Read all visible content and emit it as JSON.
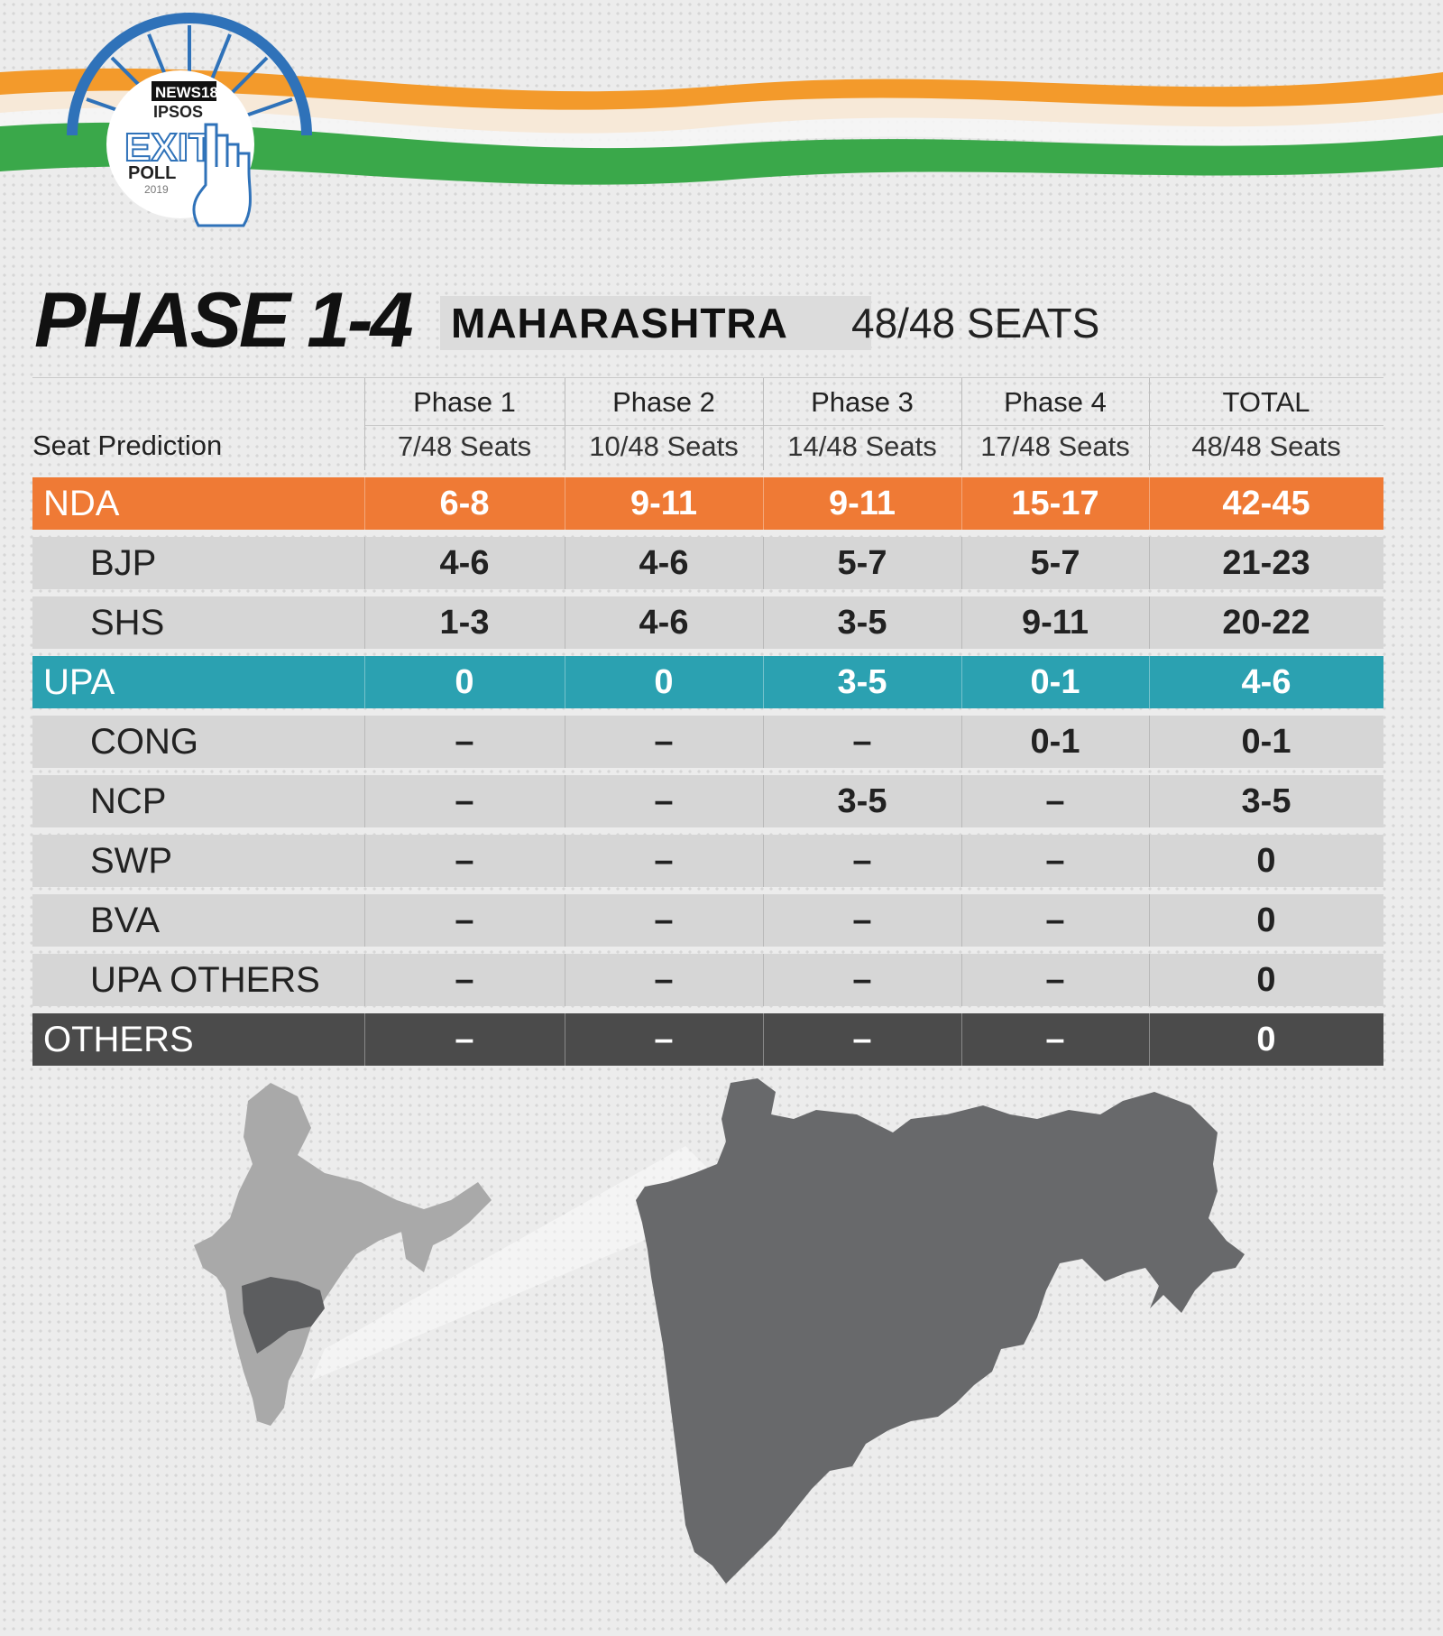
{
  "logo": {
    "brand": "NEWS18",
    "partner": "IPSOS",
    "title_line1": "EXIT",
    "title_line2": "POLL",
    "year": "2019"
  },
  "heading": {
    "phase": "PHASE 1-4",
    "state": "MAHARASHTRA",
    "seats": "48/48 SEATS"
  },
  "table": {
    "row_label": "Seat Prediction",
    "columns": [
      {
        "title": "Phase 1",
        "seats": "7/48 Seats"
      },
      {
        "title": "Phase 2",
        "seats": "10/48 Seats"
      },
      {
        "title": "Phase 3",
        "seats": "14/48 Seats"
      },
      {
        "title": "Phase 4",
        "seats": "17/48 Seats"
      },
      {
        "title": "TOTAL",
        "seats": "48/48 Seats"
      }
    ],
    "rows": [
      {
        "name": "NDA",
        "kind": "group",
        "values": [
          "6-8",
          "9-11",
          "9-11",
          "15-17",
          "42-45"
        ]
      },
      {
        "name": "BJP",
        "kind": "sub",
        "values": [
          "4-6",
          "4-6",
          "5-7",
          "5-7",
          "21-23"
        ]
      },
      {
        "name": "SHS",
        "kind": "sub",
        "values": [
          "1-3",
          "4-6",
          "3-5",
          "9-11",
          "20-22"
        ]
      },
      {
        "name": "UPA",
        "kind": "group",
        "values": [
          "0",
          "0",
          "3-5",
          "0-1",
          "4-6"
        ]
      },
      {
        "name": "CONG",
        "kind": "sub",
        "values": [
          "–",
          "–",
          "–",
          "0-1",
          "0-1"
        ]
      },
      {
        "name": "NCP",
        "kind": "sub",
        "values": [
          "–",
          "–",
          "3-5",
          "–",
          "3-5"
        ]
      },
      {
        "name": "SWP",
        "kind": "sub",
        "values": [
          "–",
          "–",
          "–",
          "–",
          "0"
        ]
      },
      {
        "name": "BVA",
        "kind": "sub",
        "values": [
          "–",
          "–",
          "–",
          "–",
          "0"
        ]
      },
      {
        "name": "UPA OTHERS",
        "kind": "sub",
        "values": [
          "–",
          "–",
          "–",
          "–",
          "0"
        ]
      },
      {
        "name": "OTHERS",
        "kind": "group",
        "values": [
          "–",
          "–",
          "–",
          "–",
          "0"
        ]
      }
    ]
  },
  "colors": {
    "nda": "#ef7a35",
    "upa": "#2ba1b1",
    "others": "#4b4b4b",
    "sub_row": "#d6d6d6",
    "map_state": "#68696b",
    "map_india": "#a9a9a9"
  }
}
